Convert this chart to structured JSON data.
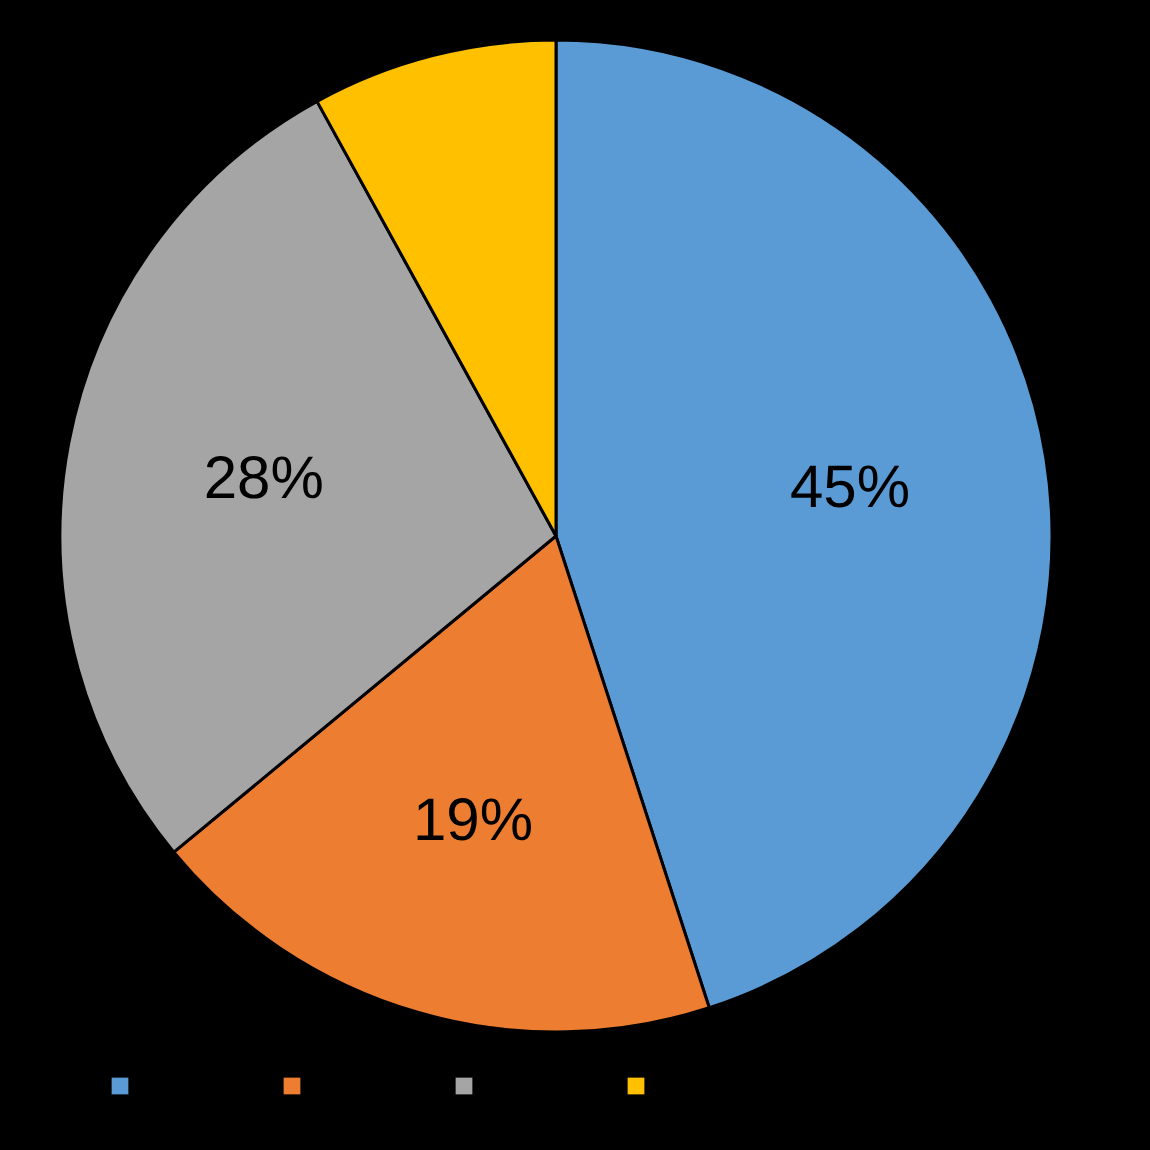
{
  "chart_data": {
    "type": "pie",
    "categories": [
      null,
      null,
      null,
      null
    ],
    "values": [
      45,
      19,
      28,
      8
    ],
    "colors": [
      "#5b9bd5",
      "#ed7d31",
      "#a5a5a5",
      "#ffc000"
    ],
    "value_labels": [
      "45%",
      "19%",
      "28%",
      null
    ]
  }
}
